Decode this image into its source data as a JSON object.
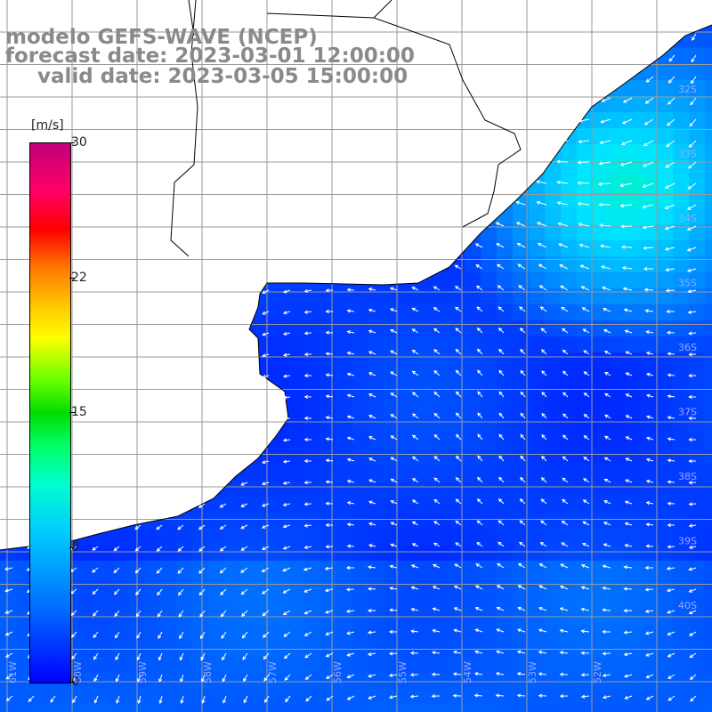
{
  "title": {
    "line1": "modelo GEFS-WAVE (NCEP)",
    "line2": "forecast date: 2023-03-01 12:00:00",
    "line3": "valid date: 2023-03-05 15:00:00"
  },
  "colorbar": {
    "units": "[m/s]",
    "min": 0,
    "max": 30,
    "ticks": [
      "30",
      "22",
      "15",
      "8",
      "0"
    ],
    "tick_values": [
      30,
      22.5,
      15,
      7.5,
      0
    ],
    "colors": [
      "#0000ff",
      "#00ccff",
      "#00ff66",
      "#ffff00",
      "#ff0000",
      "#c0007a"
    ]
  },
  "map": {
    "land_color": "#ffffff",
    "grid_color": "#9a9a9a",
    "coast_color": "#000000",
    "ocean_low_color": "#0033ff",
    "ocean_high_color": "#00ff99"
  },
  "lat_labels": [
    "32S",
    "33S",
    "34S",
    "35S",
    "36S",
    "37S",
    "38S",
    "39S",
    "40S"
  ],
  "lon_labels": [
    "61W",
    "60W",
    "59W",
    "58W",
    "57W",
    "56W",
    "55W",
    "54W",
    "53W",
    "52W"
  ]
}
